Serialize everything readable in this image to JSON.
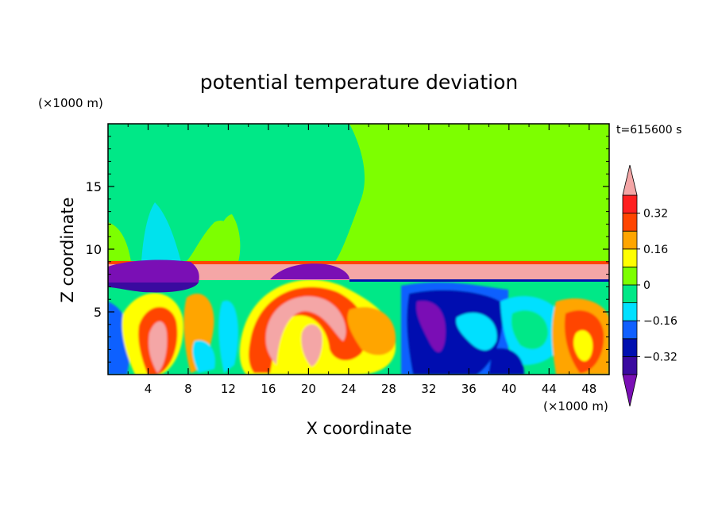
{
  "chart_data": {
    "type": "heatmap",
    "title": "potential temperature deviation",
    "xlabel": "X coordinate",
    "ylabel": "Z coordinate",
    "x_unit": "(×1000 m)",
    "y_unit": "(×1000 m)",
    "time_label": "t=615600 s",
    "xlim": [
      0,
      50
    ],
    "ylim": [
      0,
      20
    ],
    "xticks": [
      4,
      8,
      12,
      16,
      20,
      24,
      28,
      32,
      36,
      40,
      44,
      48
    ],
    "yticks": [
      5,
      10,
      15
    ],
    "colorbar": {
      "levels": [
        -0.4,
        -0.32,
        -0.24,
        -0.16,
        -0.08,
        0,
        0.08,
        0.16,
        0.24,
        0.32,
        0.4
      ],
      "tick_labels": [
        "0.32",
        "0.16",
        "0",
        "−0.16",
        "−0.32"
      ],
      "tick_values": [
        0.32,
        0.16,
        0,
        -0.16,
        -0.32
      ],
      "colors": [
        "#7a0fb5",
        "#3a0aa0",
        "#0010b0",
        "#1060ff",
        "#00e0ff",
        "#00e887",
        "#7dff00",
        "#ffff00",
        "#ffa500",
        "#ff4500",
        "#ff2020",
        "#f4a6a6"
      ]
    },
    "fields": {
      "upper_background": "#7dff00",
      "lower_background": "#00e0ff",
      "inversion_layer": "#f4a6a6",
      "cold_pool": "#7a0fb5"
    }
  }
}
